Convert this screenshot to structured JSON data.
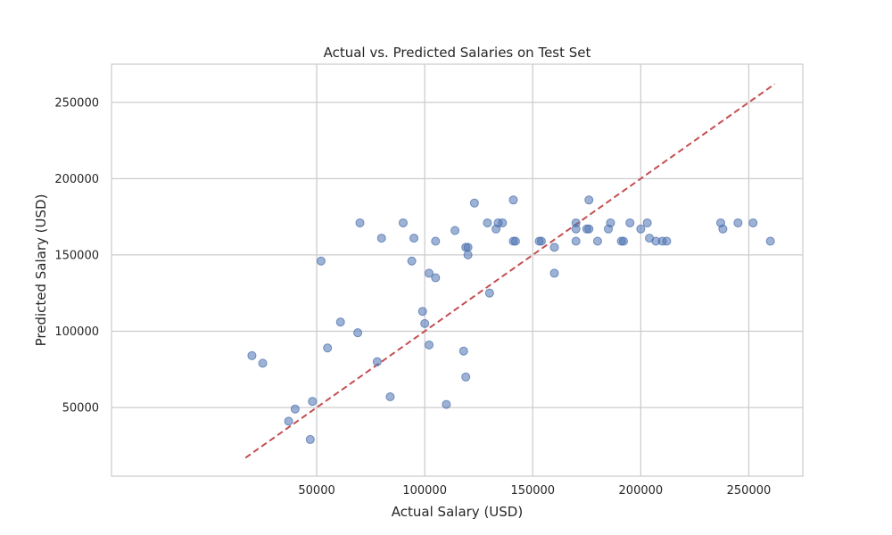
{
  "chart_data": {
    "type": "scatter",
    "title": "Actual vs. Predicted Salaries on Test Set",
    "xlabel": "Actual Salary (USD)",
    "ylabel": "Predicted Salary (USD)",
    "xlim": [
      -45000,
      275000
    ],
    "ylim": [
      5000,
      275000
    ],
    "x_ticks": [
      50000,
      100000,
      150000,
      200000,
      250000
    ],
    "y_ticks": [
      50000,
      100000,
      150000,
      200000,
      250000
    ],
    "grid": true,
    "point_color": "#4c72b0",
    "reference_line": {
      "color": "#c44e52",
      "style": "dashed",
      "x": [
        17000,
        262000
      ],
      "y": [
        17000,
        262000
      ]
    },
    "points": [
      {
        "x": 20000,
        "y": 84000
      },
      {
        "x": 25000,
        "y": 79000
      },
      {
        "x": 37000,
        "y": 41000
      },
      {
        "x": 40000,
        "y": 49000
      },
      {
        "x": 47000,
        "y": 29000
      },
      {
        "x": 48000,
        "y": 54000
      },
      {
        "x": 52000,
        "y": 146000
      },
      {
        "x": 55000,
        "y": 89000
      },
      {
        "x": 61000,
        "y": 106000
      },
      {
        "x": 69000,
        "y": 99000
      },
      {
        "x": 70000,
        "y": 171000
      },
      {
        "x": 78000,
        "y": 80000
      },
      {
        "x": 80000,
        "y": 161000
      },
      {
        "x": 84000,
        "y": 57000
      },
      {
        "x": 90000,
        "y": 171000
      },
      {
        "x": 94000,
        "y": 146000
      },
      {
        "x": 95000,
        "y": 161000
      },
      {
        "x": 99000,
        "y": 113000
      },
      {
        "x": 100000,
        "y": 105000
      },
      {
        "x": 102000,
        "y": 138000
      },
      {
        "x": 102000,
        "y": 91000
      },
      {
        "x": 105000,
        "y": 135000
      },
      {
        "x": 105000,
        "y": 159000
      },
      {
        "x": 110000,
        "y": 52000
      },
      {
        "x": 114000,
        "y": 166000
      },
      {
        "x": 118000,
        "y": 87000
      },
      {
        "x": 119000,
        "y": 70000
      },
      {
        "x": 119000,
        "y": 155000
      },
      {
        "x": 120000,
        "y": 155000
      },
      {
        "x": 120000,
        "y": 150000
      },
      {
        "x": 123000,
        "y": 184000
      },
      {
        "x": 129000,
        "y": 171000
      },
      {
        "x": 130000,
        "y": 125000
      },
      {
        "x": 133000,
        "y": 167000
      },
      {
        "x": 134000,
        "y": 171000
      },
      {
        "x": 136000,
        "y": 171000
      },
      {
        "x": 141000,
        "y": 186000
      },
      {
        "x": 141000,
        "y": 159000
      },
      {
        "x": 142000,
        "y": 159000
      },
      {
        "x": 153000,
        "y": 159000
      },
      {
        "x": 154000,
        "y": 159000
      },
      {
        "x": 160000,
        "y": 155000
      },
      {
        "x": 160000,
        "y": 138000
      },
      {
        "x": 170000,
        "y": 171000
      },
      {
        "x": 170000,
        "y": 167000
      },
      {
        "x": 170000,
        "y": 159000
      },
      {
        "x": 175000,
        "y": 167000
      },
      {
        "x": 176000,
        "y": 167000
      },
      {
        "x": 176000,
        "y": 186000
      },
      {
        "x": 180000,
        "y": 159000
      },
      {
        "x": 185000,
        "y": 167000
      },
      {
        "x": 186000,
        "y": 171000
      },
      {
        "x": 191000,
        "y": 159000
      },
      {
        "x": 192000,
        "y": 159000
      },
      {
        "x": 195000,
        "y": 171000
      },
      {
        "x": 200000,
        "y": 167000
      },
      {
        "x": 203000,
        "y": 171000
      },
      {
        "x": 204000,
        "y": 161000
      },
      {
        "x": 207000,
        "y": 159000
      },
      {
        "x": 210000,
        "y": 159000
      },
      {
        "x": 212000,
        "y": 159000
      },
      {
        "x": 237000,
        "y": 171000
      },
      {
        "x": 238000,
        "y": 167000
      },
      {
        "x": 245000,
        "y": 171000
      },
      {
        "x": 252000,
        "y": 171000
      },
      {
        "x": 260000,
        "y": 159000
      }
    ]
  }
}
